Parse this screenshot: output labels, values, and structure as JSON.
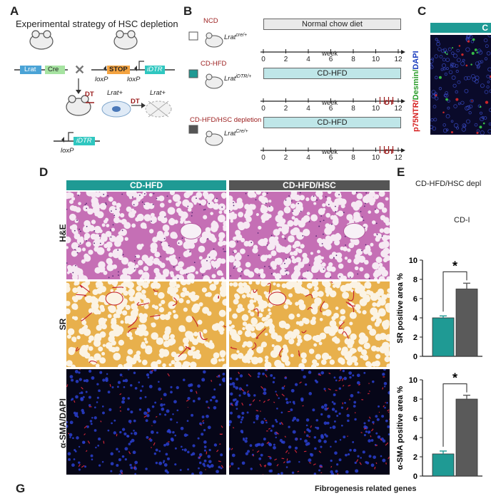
{
  "panelA": {
    "letter": "A",
    "title": "Experimental strategy of HSC depletion",
    "lrat": "Lrat",
    "cre": "Cre",
    "stop": "STOP",
    "idtr": "iDTR",
    "loxp1": "loxP",
    "loxp2": "loxP",
    "loxp3": "loxP",
    "dt1": "DT",
    "dt2": "DT",
    "lrat_plus1": "Lrat+",
    "lrat_plus2": "Lrat+",
    "idtr2": "iDTR"
  },
  "panelB": {
    "letter": "B",
    "groups": [
      {
        "name": "NCD",
        "genotype": "Lrat",
        "sup": "cre/+",
        "diet": "Normal chow diet",
        "swatch": "#ffffff",
        "namecolor": "#9b1c1c"
      },
      {
        "name": "CD-HFD",
        "genotype": "Lrat",
        "sup": "iDTR/+",
        "diet": "CD-HFD",
        "swatch": "#1f9a94",
        "namecolor": "#9b1c1c"
      },
      {
        "name": "CD-HFD/HSC depletion",
        "genotype": "Lrat",
        "sup": "Cre/+",
        "diet": "CD-HFD",
        "swatch": "#555555",
        "namecolor": "#9b1c1c"
      }
    ],
    "ticks": [
      "0",
      "2",
      "4",
      "6",
      "8",
      "10",
      "12"
    ],
    "axis_label": "week",
    "dt": "DT"
  },
  "panelC": {
    "letter": "C",
    "header": "C",
    "ylabel_red": "p75NTR/",
    "ylabel_green": "Desmin/",
    "ylabel_blue": "DAPI"
  },
  "panelD": {
    "letter": "D",
    "col1": "CD-HFD",
    "col2": "CD-HFD/HSC",
    "rows": [
      "H&E",
      "SR",
      "α-SMA/DAPI"
    ]
  },
  "panelE": {
    "letter": "E",
    "legend1": "CD-HFD/HSC depl",
    "legend2": "CD-I",
    "colors": {
      "teal": "#1f9a94",
      "gray": "#5a5a5a"
    }
  },
  "chart_data": [
    {
      "type": "bar",
      "categories": [
        "CD-HFD",
        "CD-HFD/HSC depletion"
      ],
      "values": [
        4.0,
        7.0
      ],
      "errors": [
        0.2,
        0.6
      ],
      "ylabel": "SR positive area %",
      "ylim": [
        0,
        10
      ],
      "yticks": [
        "0",
        "2",
        "4",
        "6",
        "8",
        "10"
      ],
      "significance": "*"
    },
    {
      "type": "bar",
      "categories": [
        "CD-HFD",
        "CD-HFD/HSC depletion"
      ],
      "values": [
        2.3,
        8.0
      ],
      "errors": [
        0.3,
        0.4
      ],
      "ylabel": "α-SMA positive area %",
      "ylim": [
        0,
        10
      ],
      "yticks": [
        "0",
        "2",
        "4",
        "6",
        "8",
        "10"
      ],
      "significance": "*"
    }
  ],
  "panelG": {
    "letter": "G",
    "title": "Fibrogenesis related genes"
  }
}
